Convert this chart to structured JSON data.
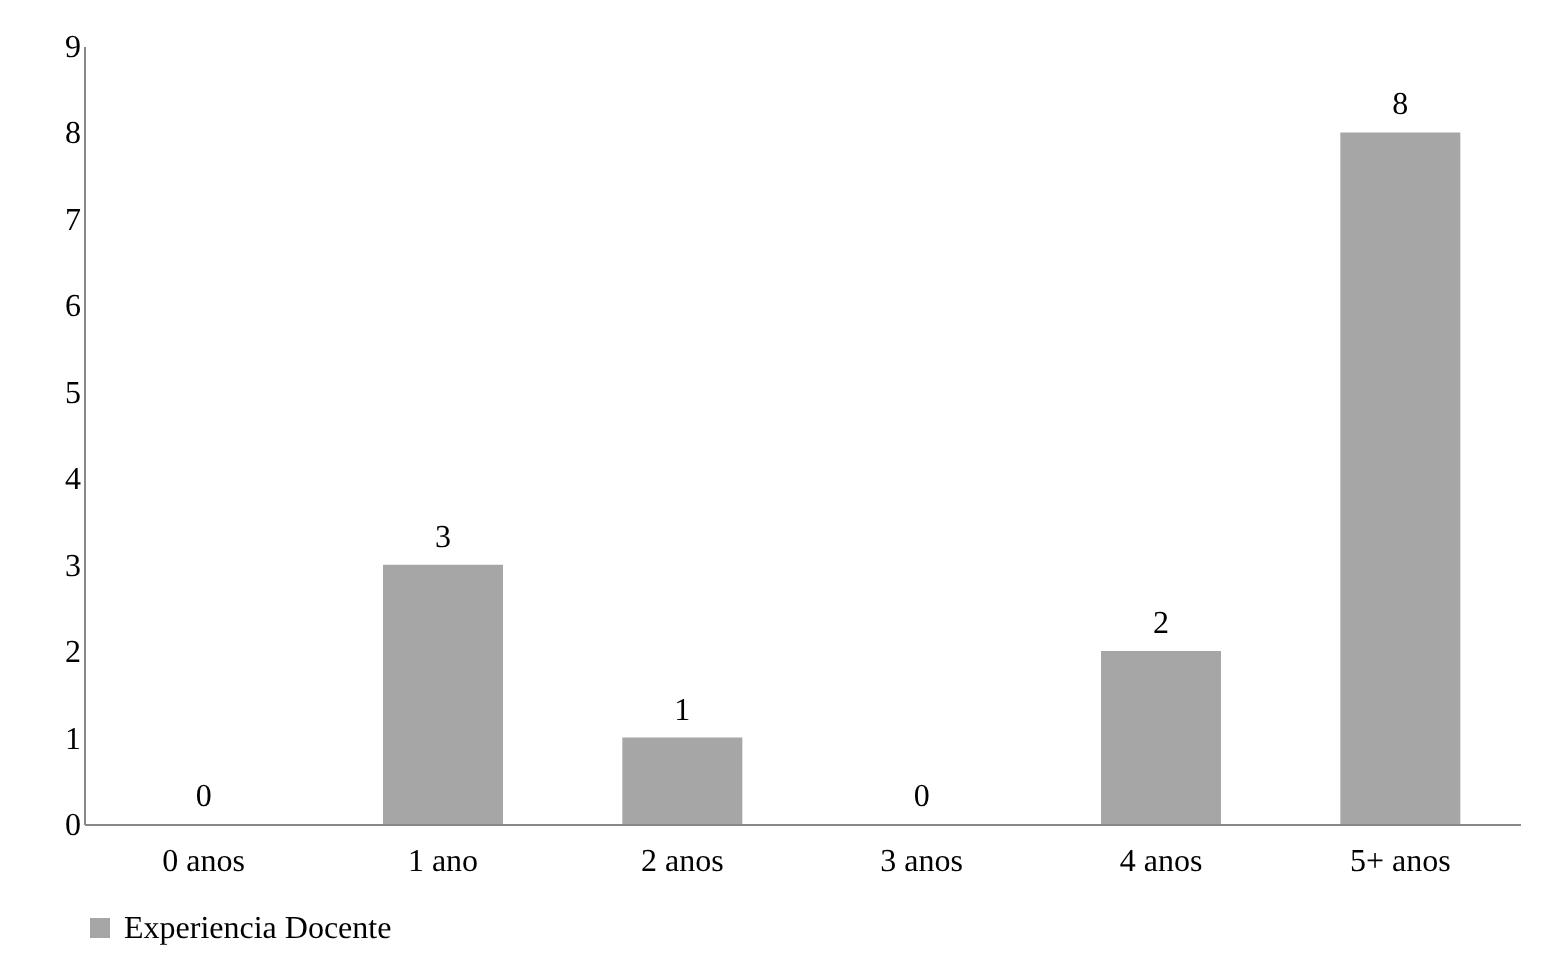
{
  "chart_data": {
    "type": "bar",
    "categories": [
      "0 anos",
      "1 ano",
      "2 anos",
      "3 anos",
      "4 anos",
      "5+ anos"
    ],
    "series": [
      {
        "name": "Experiencia Docente",
        "color": "#a6a6a6",
        "values": [
          0,
          3,
          1,
          0,
          2,
          8
        ]
      }
    ],
    "ylim": [
      0,
      9
    ],
    "yticks": [
      0,
      1,
      2,
      3,
      4,
      5,
      6,
      7,
      8,
      9
    ],
    "data_labels": true,
    "grid": false,
    "legend": "bottom"
  }
}
